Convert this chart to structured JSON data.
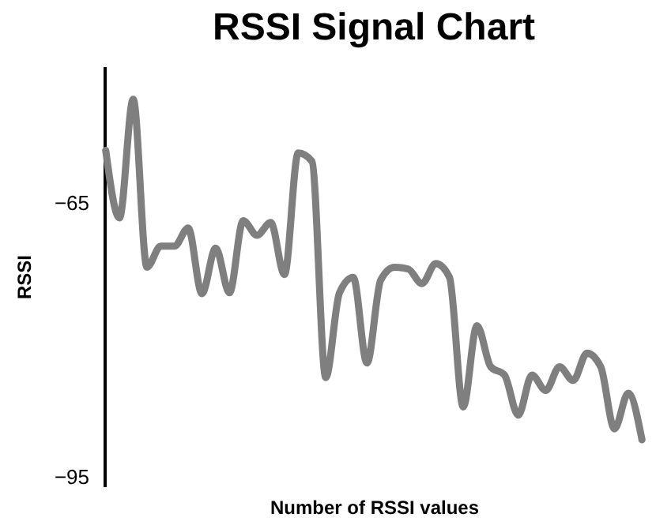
{
  "chart_data": {
    "type": "line",
    "title": "RSSI Signal Chart",
    "xlabel": "Number of RSSI values",
    "ylabel": "RSSI",
    "categories": [
      null,
      null,
      null,
      null,
      null,
      null,
      null,
      null,
      null,
      null,
      null,
      null,
      null,
      null,
      null,
      null,
      null,
      null,
      null,
      null,
      null,
      null,
      null,
      null,
      null,
      null,
      null,
      null,
      null,
      null,
      null,
      null,
      null,
      null,
      null,
      null,
      null,
      null,
      null,
      null
    ],
    "values": [
      -59.2,
      -66.6,
      -53.6,
      -72.0,
      -69.7,
      -69.7,
      -67.7,
      -74.9,
      -69.9,
      -74.8,
      -66.9,
      -68.5,
      -67.1,
      -72.8,
      -59.5,
      -60.4,
      -84.1,
      -74.8,
      -73.1,
      -82.5,
      -73.4,
      -72.0,
      -72.2,
      -73.8,
      -71.6,
      -73.1,
      -87.3,
      -78.4,
      -82.9,
      -83.8,
      -88.2,
      -83.8,
      -85.5,
      -82.9,
      -84.4,
      -81.4,
      -82.9,
      -89.7,
      -85.8,
      -90.9
    ],
    "color": "#7f7f7f",
    "ylim": [
      -96,
      -50
    ],
    "yticks": [
      -65,
      -95
    ],
    "tick_labels": "y"
  }
}
